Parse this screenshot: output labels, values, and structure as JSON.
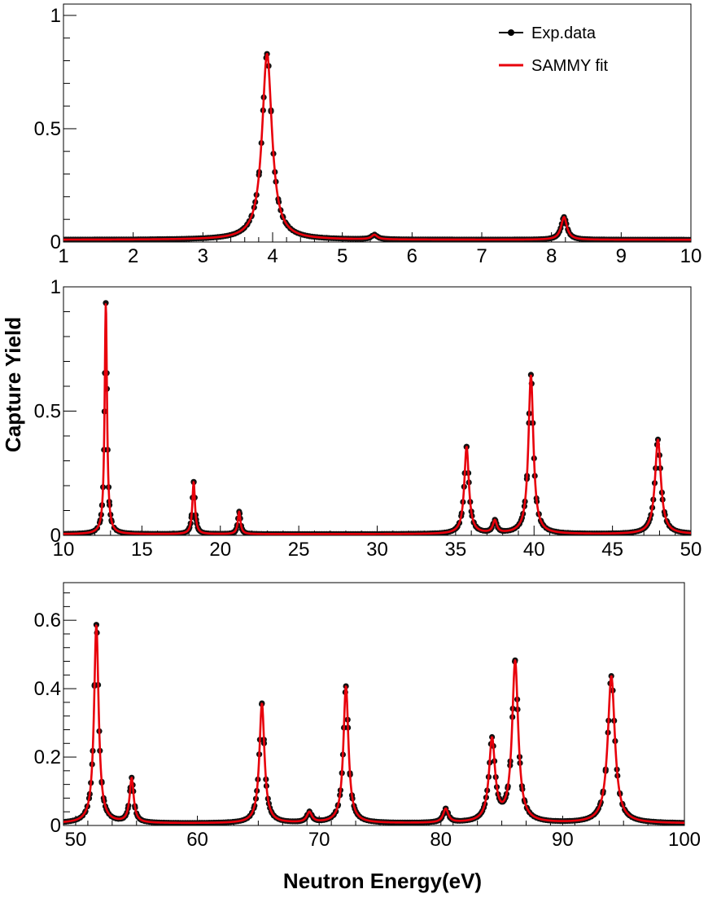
{
  "figure": {
    "ylabel": "Capture Yield",
    "xlabel": "Neutron Energy(eV)",
    "legend": [
      {
        "label": "Exp.data",
        "style": "points",
        "color": "#000000"
      },
      {
        "label": "SAMMY fit",
        "style": "line",
        "color": "#e8000b"
      }
    ]
  },
  "chart_data": [
    {
      "type": "line",
      "panel": "top",
      "xlim": [
        1,
        10
      ],
      "ylim": [
        0,
        1.05
      ],
      "xticks": [
        1,
        2,
        3,
        4,
        5,
        6,
        7,
        8,
        9,
        10
      ],
      "xtick_labels": [
        "1",
        "2",
        "3",
        "4",
        "5",
        "6",
        "7",
        "8",
        "9",
        "10"
      ],
      "yticks": [
        0,
        0.5,
        1
      ],
      "ytick_labels": [
        "0",
        "0.5",
        "1"
      ],
      "baseline": 0.01,
      "series": [
        {
          "name": "Exp.data",
          "kind": "points"
        },
        {
          "name": "SAMMY fit",
          "kind": "line"
        }
      ],
      "peaks": [
        {
          "energy": 3.92,
          "height": 0.82,
          "width": 0.17
        },
        {
          "energy": 5.46,
          "height": 0.02,
          "width": 0.1
        },
        {
          "energy": 8.18,
          "height": 0.1,
          "width": 0.1
        }
      ],
      "legend": "top-right"
    },
    {
      "type": "line",
      "panel": "middle",
      "xlim": [
        10,
        50
      ],
      "ylim": [
        0,
        1.0
      ],
      "xticks": [
        10,
        15,
        20,
        25,
        30,
        35,
        40,
        45,
        50
      ],
      "xtick_labels": [
        "10",
        "15",
        "20",
        "25",
        "30",
        "35",
        "40",
        "45",
        "50"
      ],
      "yticks": [
        0,
        0.5,
        1
      ],
      "ytick_labels": [
        "0",
        "0.5",
        "1"
      ],
      "baseline": 0.005,
      "series": [
        {
          "name": "Exp.data",
          "kind": "points"
        },
        {
          "name": "SAMMY fit",
          "kind": "line"
        }
      ],
      "peaks": [
        {
          "energy": 12.7,
          "height": 0.93,
          "width": 0.18
        },
        {
          "energy": 18.3,
          "height": 0.21,
          "width": 0.2
        },
        {
          "energy": 21.2,
          "height": 0.09,
          "width": 0.2
        },
        {
          "energy": 35.7,
          "height": 0.35,
          "width": 0.35
        },
        {
          "energy": 37.5,
          "height": 0.05,
          "width": 0.3
        },
        {
          "energy": 39.8,
          "height": 0.64,
          "width": 0.38
        },
        {
          "energy": 47.9,
          "height": 0.38,
          "width": 0.45
        }
      ]
    },
    {
      "type": "line",
      "panel": "bottom",
      "xlim": [
        49,
        100
      ],
      "ylim": [
        0,
        0.71
      ],
      "xticks": [
        50,
        60,
        70,
        80,
        90,
        100
      ],
      "xtick_labels": [
        "50",
        "60",
        "70",
        "80",
        "90",
        "100"
      ],
      "yticks": [
        0,
        0.2,
        0.4,
        0.6
      ],
      "ytick_labels": [
        "0",
        "0.2",
        "0.4",
        "0.6"
      ],
      "baseline": 0.006,
      "series": [
        {
          "name": "Exp.data",
          "kind": "points"
        },
        {
          "name": "SAMMY fit",
          "kind": "line"
        }
      ],
      "peaks": [
        {
          "energy": 51.7,
          "height": 0.58,
          "width": 0.45
        },
        {
          "energy": 54.6,
          "height": 0.13,
          "width": 0.4
        },
        {
          "energy": 65.3,
          "height": 0.35,
          "width": 0.5
        },
        {
          "energy": 69.2,
          "height": 0.03,
          "width": 0.5
        },
        {
          "energy": 72.2,
          "height": 0.4,
          "width": 0.5
        },
        {
          "energy": 80.4,
          "height": 0.04,
          "width": 0.5
        },
        {
          "energy": 84.2,
          "height": 0.24,
          "width": 0.6
        },
        {
          "energy": 86.1,
          "height": 0.47,
          "width": 0.6
        },
        {
          "energy": 94.0,
          "height": 0.43,
          "width": 0.7
        }
      ]
    }
  ]
}
